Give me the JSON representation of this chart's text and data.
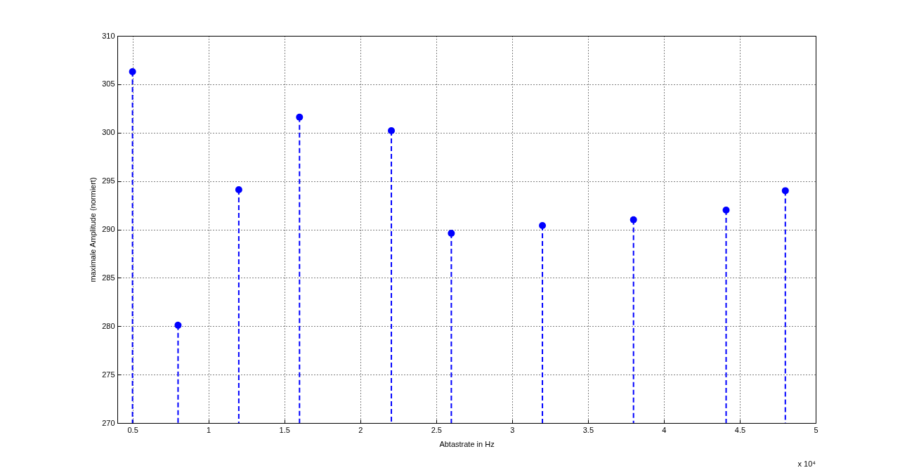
{
  "chart_data": {
    "type": "lollipop",
    "xlabel": "Abtastrate in Hz",
    "ylabel": "maximale Amplitude (normiert)",
    "x": [
      0.5,
      0.8,
      1.2,
      1.6,
      2.205,
      2.6,
      3.2,
      3.8,
      4.41,
      4.8
    ],
    "values": [
      306.3,
      280.1,
      294.1,
      301.6,
      300.2,
      289.6,
      290.4,
      291.0,
      292.0,
      294.0
    ],
    "color": "#0000ff",
    "marker": "circle",
    "line_style": "dashed",
    "grid": true,
    "xlim": [
      0.4,
      5
    ],
    "xticks": [
      0.5,
      1,
      1.5,
      2,
      2.5,
      3,
      3.5,
      4,
      4.5,
      5
    ],
    "ylim": [
      270,
      310
    ],
    "yticks": [
      270,
      275,
      280,
      285,
      290,
      295,
      300,
      305,
      310
    ],
    "annotations": [
      "x 10⁴"
    ]
  }
}
